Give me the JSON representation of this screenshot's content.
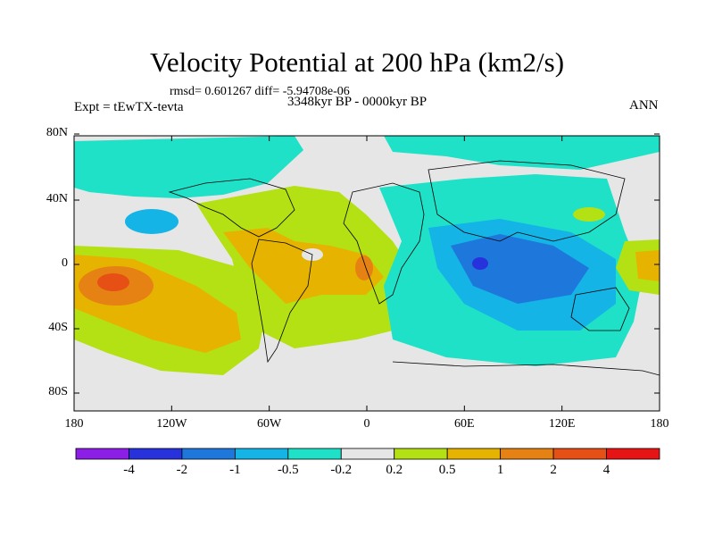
{
  "title": "Velocity Potential at 200 hPa (km2/s)",
  "stats": "rmsd= 0.601267 diff= -5.94708e-06",
  "experiment": "Expt = tEwTX-tevta",
  "period": "3348kyr BP - 0000kyr BP",
  "season": "ANN",
  "lat_ticks": [
    "80N",
    "40N",
    "0",
    "40S",
    "80S"
  ],
  "lon_ticks": [
    "180",
    "120W",
    "60W",
    "0",
    "60E",
    "120E",
    "180"
  ],
  "colorbar": {
    "labels": [
      "-4",
      "-2",
      "-1",
      "-0.5",
      "-0.2",
      "0.2",
      "0.5",
      "1",
      "2",
      "4"
    ],
    "colors": [
      "#8c1ee6",
      "#2832dc",
      "#1e78dc",
      "#14b4e6",
      "#1ee1c8",
      "#e6e6e6",
      "#b4e114",
      "#e6b400",
      "#e68214",
      "#e65014",
      "#e61414"
    ]
  }
}
